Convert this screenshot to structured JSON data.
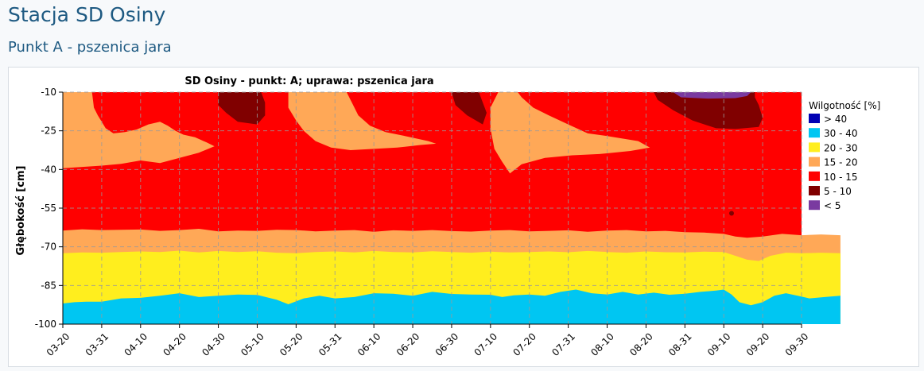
{
  "page": {
    "title": "Stacja SD Osiny",
    "section_title": "Punkt A - pszenica jara"
  },
  "chart_data": {
    "type": "area",
    "title": "SD Osiny - punkt: A; uprawa: pszenica jara",
    "ylabel": "Głębokość [cm]",
    "xlabel": "",
    "ylim": [
      -100,
      -10
    ],
    "yticks": [
      -10,
      -25,
      -40,
      -55,
      -70,
      -85,
      -100
    ],
    "xticks": [
      "03-20",
      "03-31",
      "04-10",
      "04-20",
      "04-30",
      "05-10",
      "05-20",
      "05-31",
      "06-10",
      "06-20",
      "06-30",
      "07-10",
      "07-20",
      "07-31",
      "08-10",
      "08-20",
      "08-31",
      "09-10",
      "09-20",
      "09-30"
    ],
    "grid": true,
    "legend": {
      "title": "Wilgotność [%]",
      "placement": "right",
      "items": [
        {
          "label": "> 40",
          "color": "#0000b4"
        },
        {
          "label": "30 - 40",
          "color": "#00c6f2"
        },
        {
          "label": "20 - 30",
          "color": "#ffee1e"
        },
        {
          "label": "15 - 20",
          "color": "#ffa857"
        },
        {
          "label": "10 - 15",
          "color": "#ff0000"
        },
        {
          "label": "5 - 10",
          "color": "#800000"
        },
        {
          "label": "< 5",
          "color": "#7a3aa0"
        }
      ]
    },
    "layers": [
      {
        "name": "30 - 40 / 20 - 30 boundary",
        "color_key": "20 - 30",
        "points": [
          [
            0,
            -92
          ],
          [
            0.3,
            -91.5
          ],
          [
            0.6,
            -91.3
          ],
          [
            1,
            -91.3
          ],
          [
            1.5,
            -90
          ],
          [
            2,
            -89.8
          ],
          [
            2.5,
            -89
          ],
          [
            3,
            -88
          ],
          [
            3.5,
            -89.5
          ],
          [
            4,
            -89
          ],
          [
            4.5,
            -88.5
          ],
          [
            5,
            -88.7
          ],
          [
            5.5,
            -90.5
          ],
          [
            5.8,
            -92.3
          ],
          [
            6.2,
            -90
          ],
          [
            6.6,
            -89
          ],
          [
            7,
            -90
          ],
          [
            7.5,
            -89.5
          ],
          [
            8,
            -88
          ],
          [
            8.5,
            -88.2
          ],
          [
            9,
            -89
          ],
          [
            9.5,
            -87.5
          ],
          [
            10,
            -88.3
          ],
          [
            10.5,
            -88.5
          ],
          [
            11,
            -88.6
          ],
          [
            11.3,
            -89.5
          ],
          [
            11.6,
            -88.8
          ],
          [
            12,
            -88.5
          ],
          [
            12.4,
            -89
          ],
          [
            12.8,
            -87.5
          ],
          [
            13.2,
            -86.6
          ],
          [
            13.6,
            -88
          ],
          [
            14,
            -88.5
          ],
          [
            14.4,
            -87.5
          ],
          [
            14.8,
            -88.5
          ],
          [
            15.2,
            -87.8
          ],
          [
            15.6,
            -88.6
          ],
          [
            16,
            -88.2
          ],
          [
            16.4,
            -87.5
          ],
          [
            16.8,
            -87
          ],
          [
            17,
            -86.6
          ],
          [
            17.2,
            -88.5
          ],
          [
            17.4,
            -91.5
          ],
          [
            17.7,
            -92.7
          ],
          [
            18,
            -91.5
          ],
          [
            18.3,
            -89
          ],
          [
            18.6,
            -88
          ],
          [
            18.9,
            -89
          ],
          [
            19.2,
            -90
          ],
          [
            19.6,
            -89.5
          ],
          [
            20,
            -89
          ]
        ]
      },
      {
        "name": "20 - 30 / 15 - 20 boundary",
        "color_key": "15 - 20",
        "points": [
          [
            0,
            -72.5
          ],
          [
            0.5,
            -72.2
          ],
          [
            1,
            -72.3
          ],
          [
            1.5,
            -72
          ],
          [
            2,
            -71.8
          ],
          [
            2.5,
            -72
          ],
          [
            3,
            -71.5
          ],
          [
            3.5,
            -72.2
          ],
          [
            4,
            -71.6
          ],
          [
            4.5,
            -72
          ],
          [
            5,
            -71.7
          ],
          [
            5.5,
            -72.3
          ],
          [
            6,
            -72.5
          ],
          [
            6.5,
            -72
          ],
          [
            7,
            -71.8
          ],
          [
            7.5,
            -72.2
          ],
          [
            8,
            -71.6
          ],
          [
            8.5,
            -72
          ],
          [
            9,
            -72.2
          ],
          [
            9.5,
            -71.7
          ],
          [
            10,
            -72
          ],
          [
            10.5,
            -72.3
          ],
          [
            11,
            -71.9
          ],
          [
            11.5,
            -72.2
          ],
          [
            12,
            -72
          ],
          [
            12.5,
            -71.8
          ],
          [
            13,
            -72.1
          ],
          [
            13.5,
            -71.6
          ],
          [
            14,
            -72
          ],
          [
            14.5,
            -72.3
          ],
          [
            15,
            -71.8
          ],
          [
            15.5,
            -72.1
          ],
          [
            16,
            -72.2
          ],
          [
            16.5,
            -71.9
          ],
          [
            17,
            -72
          ],
          [
            17.3,
            -73.5
          ],
          [
            17.6,
            -75
          ],
          [
            17.9,
            -75.5
          ],
          [
            18.2,
            -73.5
          ],
          [
            18.6,
            -72.3
          ],
          [
            19,
            -72.5
          ],
          [
            19.5,
            -72.3
          ],
          [
            20,
            -72.5
          ]
        ]
      },
      {
        "name": "15 - 20 / 10 - 15 boundary (bottom)",
        "color_key": "10 - 15",
        "points": [
          [
            0,
            -63.7
          ],
          [
            0.5,
            -63.2
          ],
          [
            1,
            -63.5
          ],
          [
            1.5,
            -63.4
          ],
          [
            2,
            -63.3
          ],
          [
            2.5,
            -63.8
          ],
          [
            3,
            -63.5
          ],
          [
            3.5,
            -63
          ],
          [
            4,
            -64
          ],
          [
            4.5,
            -63.7
          ],
          [
            5,
            -63.8
          ],
          [
            5.5,
            -63.4
          ],
          [
            6,
            -63.5
          ],
          [
            6.5,
            -64
          ],
          [
            7,
            -63.7
          ],
          [
            7.5,
            -63.5
          ],
          [
            8,
            -64.2
          ],
          [
            8.5,
            -63.6
          ],
          [
            9,
            -63.8
          ],
          [
            9.5,
            -63.5
          ],
          [
            10,
            -63.9
          ],
          [
            10.5,
            -64.1
          ],
          [
            11,
            -63.7
          ],
          [
            11.5,
            -63.5
          ],
          [
            12,
            -64
          ],
          [
            12.5,
            -63.8
          ],
          [
            13,
            -63.6
          ],
          [
            13.5,
            -64.2
          ],
          [
            14,
            -63.7
          ],
          [
            14.5,
            -63.5
          ],
          [
            15,
            -64
          ],
          [
            15.5,
            -63.8
          ],
          [
            16,
            -64.3
          ],
          [
            16.5,
            -64.5
          ],
          [
            17,
            -65
          ],
          [
            17.3,
            -66
          ],
          [
            17.6,
            -66.5
          ],
          [
            18,
            -66
          ],
          [
            18.5,
            -65
          ],
          [
            19,
            -65.5
          ],
          [
            19.5,
            -65.2
          ],
          [
            20,
            -65.5
          ]
        ]
      },
      {
        "name": "15 - 20 surface patch 1",
        "color_key": "15 - 20",
        "points": [
          [
            0,
            -10
          ],
          [
            0,
            -39.5
          ],
          [
            0.5,
            -39
          ],
          [
            1,
            -38.5
          ],
          [
            1.5,
            -37.8
          ],
          [
            2,
            -36.5
          ],
          [
            2.5,
            -37.5
          ],
          [
            3,
            -35.5
          ],
          [
            3.5,
            -33.5
          ],
          [
            3.9,
            -31
          ],
          [
            3.7,
            -29.5
          ],
          [
            3.4,
            -27.5
          ],
          [
            3.1,
            -26.5
          ],
          [
            2.9,
            -25
          ],
          [
            2.7,
            -23
          ],
          [
            2.5,
            -21.5
          ],
          [
            2.2,
            -22.5
          ],
          [
            1.9,
            -24.5
          ],
          [
            1.6,
            -25.5
          ],
          [
            1.3,
            -26
          ],
          [
            1.1,
            -24
          ],
          [
            1.0,
            -21.5
          ],
          [
            0.9,
            -19
          ],
          [
            0.8,
            -16
          ],
          [
            0.75,
            -10
          ]
        ]
      },
      {
        "name": "15 - 20 surface patch 2",
        "color_key": "15 - 20",
        "points": [
          [
            5.8,
            -10
          ],
          [
            5.8,
            -16
          ],
          [
            6.0,
            -21
          ],
          [
            6.2,
            -25
          ],
          [
            6.5,
            -29
          ],
          [
            6.9,
            -31.5
          ],
          [
            7.4,
            -32.5
          ],
          [
            8.0,
            -32
          ],
          [
            8.6,
            -31.5
          ],
          [
            9.2,
            -30.5
          ],
          [
            9.6,
            -30
          ],
          [
            9.4,
            -29
          ],
          [
            8.8,
            -27
          ],
          [
            8.3,
            -25.5
          ],
          [
            7.9,
            -23
          ],
          [
            7.6,
            -19
          ],
          [
            7.4,
            -13
          ],
          [
            7.3,
            -10
          ]
        ]
      },
      {
        "name": "15 - 20 surface patch 3",
        "color_key": "15 - 20",
        "points": [
          [
            11.2,
            -10
          ],
          [
            11.0,
            -16
          ],
          [
            11.0,
            -24
          ],
          [
            11.1,
            -32
          ],
          [
            11.3,
            -37
          ],
          [
            11.5,
            -41.5
          ],
          [
            11.8,
            -38
          ],
          [
            12.4,
            -35.5
          ],
          [
            13.1,
            -34.5
          ],
          [
            13.8,
            -34
          ],
          [
            14.6,
            -32.8
          ],
          [
            15.1,
            -31.5
          ],
          [
            14.8,
            -29
          ],
          [
            14.0,
            -27
          ],
          [
            13.5,
            -26
          ],
          [
            13.0,
            -22.5
          ],
          [
            12.5,
            -19
          ],
          [
            12.1,
            -16
          ],
          [
            11.8,
            -12
          ],
          [
            11.7,
            -10
          ]
        ]
      },
      {
        "name": "5 - 10 pocket 1",
        "color_key": "5 - 10",
        "points": [
          [
            4.0,
            -10
          ],
          [
            4.0,
            -15
          ],
          [
            4.2,
            -18
          ],
          [
            4.5,
            -21.5
          ],
          [
            5.0,
            -22.5
          ],
          [
            5.2,
            -19
          ],
          [
            5.2,
            -14
          ],
          [
            5.1,
            -10
          ]
        ]
      },
      {
        "name": "5 - 10 pocket 2",
        "color_key": "5 - 10",
        "points": [
          [
            10.0,
            -10
          ],
          [
            10.1,
            -15
          ],
          [
            10.4,
            -19
          ],
          [
            10.8,
            -22.5
          ],
          [
            10.9,
            -18
          ],
          [
            10.8,
            -14
          ],
          [
            10.7,
            -10
          ]
        ]
      },
      {
        "name": "5 - 10 pocket 3",
        "color_key": "5 - 10",
        "points": [
          [
            15.2,
            -10
          ],
          [
            15.3,
            -13
          ],
          [
            15.7,
            -17
          ],
          [
            16.2,
            -21
          ],
          [
            16.8,
            -24
          ],
          [
            17.3,
            -24.3
          ],
          [
            17.9,
            -23.5
          ],
          [
            18.0,
            -20
          ],
          [
            17.9,
            -15
          ],
          [
            17.8,
            -12
          ],
          [
            17.8,
            -10
          ]
        ]
      },
      {
        "name": "< 5 pocket",
        "color_key": "< 5",
        "points": [
          [
            15.7,
            -10
          ],
          [
            15.9,
            -12
          ],
          [
            16.6,
            -12.5
          ],
          [
            17.3,
            -12.3
          ],
          [
            17.6,
            -11.5
          ],
          [
            17.7,
            -10
          ]
        ]
      }
    ]
  }
}
